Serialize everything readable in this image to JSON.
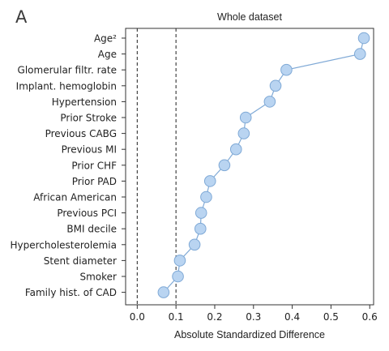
{
  "panel_letter": "A",
  "chart_data": {
    "type": "scatter",
    "title": "Whole dataset",
    "xlabel": "Absolute Standardized Difference",
    "ylabel": "",
    "xlim": [
      -0.03,
      0.61
    ],
    "xticks": [
      "0.0",
      "0.1",
      "0.2",
      "0.3",
      "0.4",
      "0.5",
      "0.6"
    ],
    "reference_lines": [
      0.0,
      0.1
    ],
    "categories": [
      "Age²",
      "Age",
      "Glomerular filtr. rate",
      "Implant. hemoglobin",
      "Hypertension",
      "Prior Stroke",
      "Previous CABG",
      "Previous MI",
      "Prior CHF",
      "Prior PAD",
      "African American",
      "Previous PCI",
      "BMI decile",
      "Hypercholesterolemia",
      "Stent diameter",
      "Smoker",
      "Family hist. of CAD"
    ],
    "values": [
      0.585,
      0.575,
      0.385,
      0.357,
      0.342,
      0.28,
      0.275,
      0.255,
      0.225,
      0.188,
      0.178,
      0.165,
      0.163,
      0.148,
      0.11,
      0.105,
      0.068
    ],
    "point_color": "#b9d4f1",
    "point_edge_color": "#7fa9d6",
    "line_color": "#7fa9d6",
    "grid": false
  }
}
